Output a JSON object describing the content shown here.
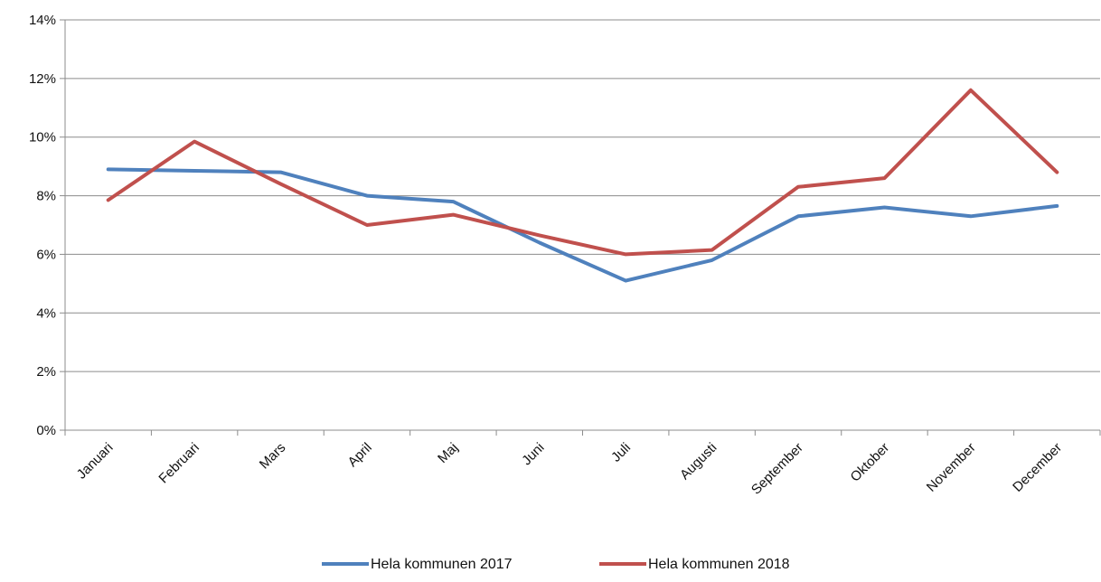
{
  "chart_data": {
    "type": "line",
    "categories": [
      "Januari",
      "Februari",
      "Mars",
      "April",
      "Maj",
      "Juni",
      "Juli",
      "Augusti",
      "September",
      "Oktober",
      "November",
      "December"
    ],
    "series": [
      {
        "name": "Hela kommunen 2017",
        "color": "#4f81bd",
        "values": [
          8.9,
          8.85,
          8.8,
          8.0,
          7.8,
          6.4,
          5.1,
          5.8,
          7.3,
          7.6,
          7.3,
          7.65
        ]
      },
      {
        "name": "Hela kommunen 2018",
        "color": "#c0504d",
        "values": [
          7.85,
          9.85,
          8.4,
          7.0,
          7.35,
          6.65,
          6.0,
          6.15,
          8.3,
          8.6,
          11.6,
          8.8
        ]
      }
    ],
    "y_ticks": [
      "0%",
      "2%",
      "4%",
      "6%",
      "8%",
      "10%",
      "12%",
      "14%"
    ],
    "ylim": [
      0,
      14
    ],
    "grid": true,
    "legend_position": "bottom"
  }
}
